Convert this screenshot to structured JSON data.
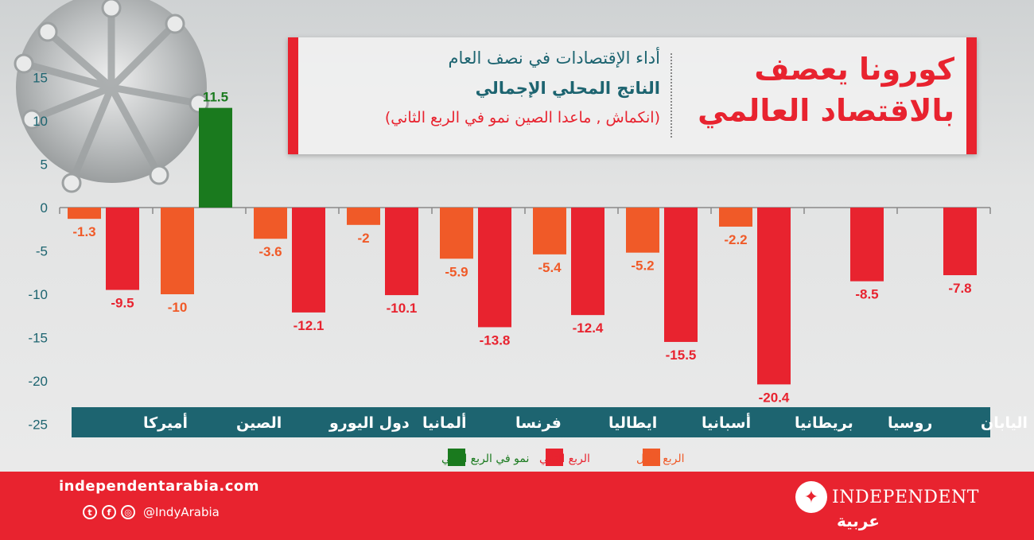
{
  "header": {
    "title": "كورونا يعصف بالاقتصاد العالمي",
    "subtitle_1": "أداء الإقتصادات في نصف العام",
    "subtitle_2": "الناتج المحلي الإجمالي",
    "subtitle_3": "(انكماش , ماعدا الصين نمو  في الربع الثاني)"
  },
  "footer": {
    "website": "independentarabia.com",
    "handle": "@IndyArabia",
    "brand_name": "INDEPENDENT",
    "brand_sub": "عربية"
  },
  "colors": {
    "q1": "#f05a28",
    "q2": "#e8232f",
    "growth": "#1a7a1e",
    "axis_bar": "#1d6470",
    "footer": "#e8232f"
  },
  "chart_data": {
    "type": "bar",
    "y_ticks": [
      "15",
      "10",
      "5",
      "0",
      "-5",
      "-10",
      "-15",
      "-20",
      "-25"
    ],
    "ylim": [
      -25,
      15
    ],
    "categories": [
      "أميركا",
      "الصين",
      "دول اليورو",
      "ألمانيا",
      "فرنسا",
      "ايطاليا",
      "أسبانيا",
      "بريطانيا",
      "روسيا",
      "اليابان"
    ],
    "series": [
      {
        "name": "الربع الأول",
        "values": [
          -1.3,
          -10,
          -3.6,
          -2,
          -5.9,
          -5.4,
          -5.2,
          -2.2,
          null,
          null
        ],
        "labels": [
          "-1.3",
          "-10",
          "-3.6",
          "-2",
          "-5.9",
          "-5.4",
          "-5.2",
          "-2.2",
          "",
          ""
        ]
      },
      {
        "name": "الربع الثاني",
        "values": [
          -9.5,
          11.5,
          -12.1,
          -10.1,
          -13.8,
          -12.4,
          -15.5,
          -20.4,
          -8.5,
          -7.8
        ],
        "labels": [
          "-9.5",
          "11.5",
          "-12.1",
          "-10.1",
          "-13.8",
          "-12.4",
          "-15.5",
          "-20.4",
          "-8.5",
          "-7.8"
        ]
      }
    ],
    "legend": [
      {
        "name": "الربع الأول",
        "color": "#f05a28"
      },
      {
        "name": "الربع الثاني",
        "color": "#e8232f"
      },
      {
        "name": "نمو  في الربع الثاني",
        "color": "#1a7a1e"
      }
    ],
    "growth_highlight": {
      "category": "الصين",
      "series": "الربع الثاني"
    },
    "legend_position": "bottom"
  }
}
